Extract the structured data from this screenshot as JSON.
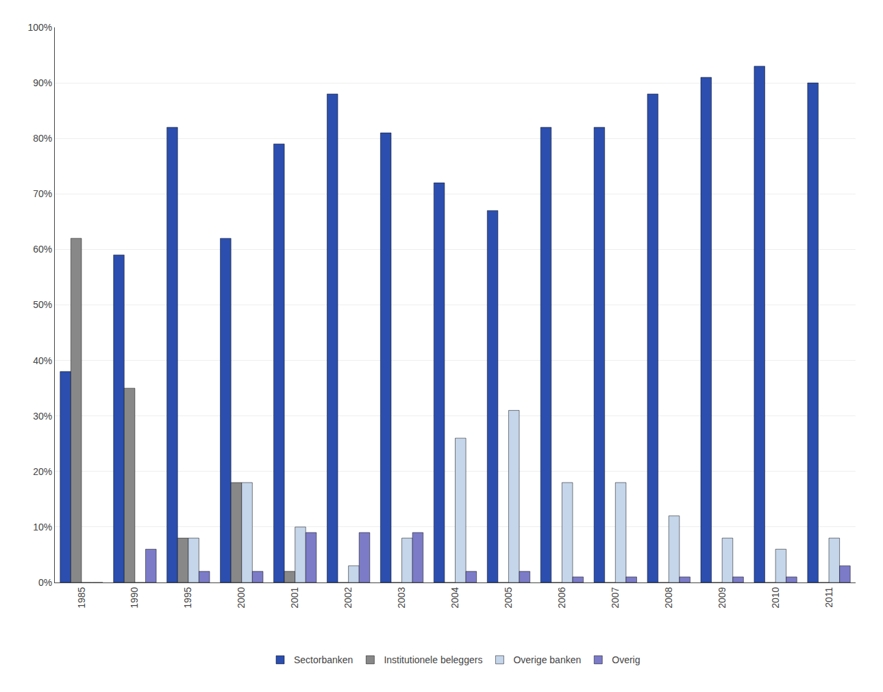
{
  "chart_data": {
    "type": "bar",
    "categories": [
      "1985",
      "1990",
      "1995",
      "2000",
      "2001",
      "2002",
      "2003",
      "2004",
      "2005",
      "2006",
      "2007",
      "2008",
      "2009",
      "2010",
      "2011"
    ],
    "series": [
      {
        "name": "Sectorbanken",
        "color": "#2B4EAF",
        "values": [
          38,
          59,
          82,
          62,
          79,
          88,
          81,
          72,
          67,
          82,
          82,
          88,
          91,
          93,
          90
        ]
      },
      {
        "name": "Institutionele beleggers",
        "color": "#888888",
        "values": [
          62,
          35,
          8,
          18,
          2,
          0,
          0,
          0,
          0,
          0,
          0,
          0,
          0,
          0,
          0
        ]
      },
      {
        "name": "Overige banken",
        "color": "#C5D5EA",
        "values": [
          0,
          0,
          8,
          18,
          10,
          3,
          8,
          26,
          31,
          18,
          18,
          12,
          8,
          6,
          8
        ]
      },
      {
        "name": "Overig",
        "color": "#7B7BC8",
        "values": [
          0,
          6,
          2,
          2,
          9,
          9,
          9,
          2,
          2,
          1,
          1,
          1,
          1,
          1,
          3
        ]
      }
    ],
    "ylim": [
      0,
      100
    ],
    "yticks": [
      {
        "value": 0,
        "label": "0%"
      },
      {
        "value": 10,
        "label": "10%"
      },
      {
        "value": 20,
        "label": "20%"
      },
      {
        "value": 30,
        "label": "30%"
      },
      {
        "value": 40,
        "label": "40%"
      },
      {
        "value": 50,
        "label": "50%"
      },
      {
        "value": 60,
        "label": "60%"
      },
      {
        "value": 70,
        "label": "70%"
      },
      {
        "value": 80,
        "label": "80%"
      },
      {
        "value": 90,
        "label": "90%"
      },
      {
        "value": 100,
        "label": "100%"
      }
    ],
    "grid": true,
    "legend": "bottom"
  }
}
